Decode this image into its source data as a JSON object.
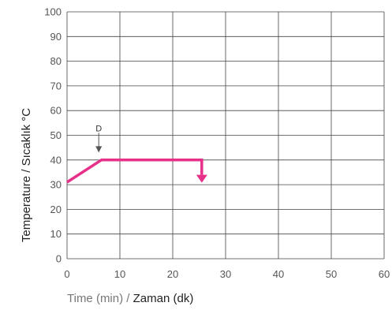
{
  "chart_data": {
    "type": "line",
    "xlabel_part1": "Time (min)",
    "xlabel_sep": " / ",
    "xlabel_part2": "Zaman (dk)",
    "ylabel": "Temperature / Sıcaklık °C",
    "xlim": [
      0,
      60
    ],
    "ylim": [
      0,
      100
    ],
    "x_ticks": [
      0,
      10,
      20,
      30,
      40,
      50,
      60
    ],
    "y_ticks": [
      0,
      10,
      20,
      30,
      40,
      50,
      60,
      70,
      80,
      90,
      100
    ],
    "grid": true,
    "series": [
      {
        "color": "#e6308a",
        "points": [
          [
            0,
            31
          ],
          [
            6.5,
            40
          ],
          [
            25.5,
            40
          ],
          [
            25.5,
            34
          ]
        ],
        "end_arrow": "down"
      }
    ],
    "annotations": [
      {
        "text": "D",
        "x": 6,
        "y_from": 51,
        "y_to": 43
      }
    ]
  }
}
